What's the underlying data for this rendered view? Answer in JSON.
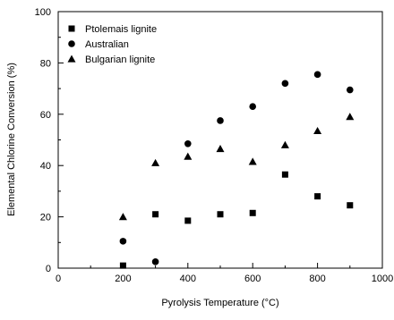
{
  "chart_data": {
    "type": "scatter",
    "xlabel": "Pyrolysis Temperature (°C)",
    "ylabel": "Elemental Chlorine Conversion (%)",
    "xlim": [
      0,
      1000
    ],
    "ylim": [
      0,
      100
    ],
    "x_ticks": [
      0,
      200,
      400,
      600,
      800,
      1000
    ],
    "x_tick_labels": [
      "0",
      "200",
      "400",
      "600",
      "800",
      "1000"
    ],
    "x_minor_ticks": [
      100,
      300,
      500,
      700,
      900
    ],
    "y_ticks": [
      0,
      20,
      40,
      60,
      80,
      100
    ],
    "y_tick_labels": [
      "0",
      "20",
      "40",
      "60",
      "80",
      "100"
    ],
    "y_minor_ticks": [
      10,
      30,
      50,
      70,
      90
    ],
    "grid": false,
    "legend_position": "top-left",
    "series": [
      {
        "name": "Ptolemais lignite",
        "marker": "square",
        "color": "#000000",
        "x": [
          200,
          300,
          400,
          500,
          600,
          700,
          800,
          900
        ],
        "y": [
          1,
          21,
          18.5,
          21,
          21.5,
          36.5,
          28,
          24.5
        ]
      },
      {
        "name": "Australian",
        "marker": "circle",
        "color": "#000000",
        "x": [
          200,
          300,
          400,
          500,
          600,
          700,
          800,
          900
        ],
        "y": [
          10.5,
          2.5,
          48.5,
          57.5,
          63,
          72,
          75.5,
          69.5
        ]
      },
      {
        "name": "Bulgarian lignite",
        "marker": "triangle",
        "color": "#000000",
        "x": [
          200,
          300,
          400,
          500,
          600,
          700,
          800,
          900
        ],
        "y": [
          20,
          41,
          43.5,
          46.5,
          41.5,
          48,
          53.5,
          59
        ]
      }
    ]
  }
}
